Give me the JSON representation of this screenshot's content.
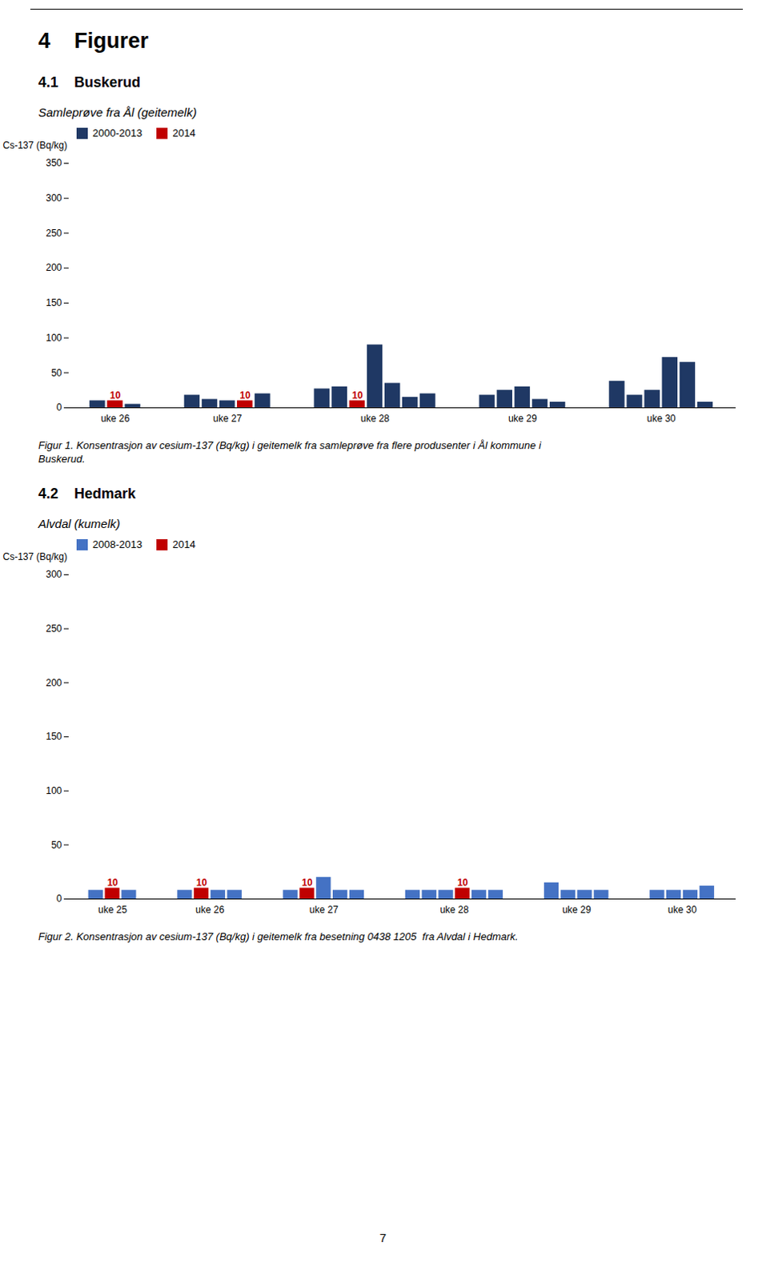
{
  "title": "4    Figurer",
  "footer": "7",
  "chart_data": [
    {
      "type": "bar",
      "section": "4.1    Buskerud",
      "title": "Samleprøve fra Ål (geitemelk)",
      "ylabel": "Cs-137 (Bq/kg)",
      "categories": [
        "uke 26",
        "uke 27",
        "uke 28",
        "uke 29",
        "uke 30"
      ],
      "series": [
        {
          "name": "2000-2013",
          "color": "#1F3864",
          "values": [
            [
              10,
              null,
              5
            ],
            [
              18,
              12,
              10,
              null,
              20
            ],
            [
              27,
              30,
              null,
              90,
              35,
              15,
              20
            ],
            [
              18,
              25,
              30,
              12,
              8
            ],
            [
              38,
              18,
              25,
              72,
              65,
              8
            ]
          ]
        },
        {
          "name": "2014",
          "color": "#C00000",
          "data_labels": true,
          "values": [
            [
              null,
              10,
              null
            ],
            [
              null,
              null,
              null,
              10,
              null
            ],
            [
              null,
              null,
              10,
              null,
              null,
              null,
              null
            ],
            [
              null,
              null,
              null,
              null,
              null
            ],
            [
              null,
              null,
              null,
              null,
              null,
              null
            ]
          ]
        }
      ],
      "ylim": [
        0,
        350
      ],
      "yticks": [
        0,
        50,
        100,
        150,
        200,
        250,
        300,
        350
      ],
      "grid": false,
      "legend": "upper left",
      "caption": [
        "Figur 1. Konsentrasjon av cesium-137 (Bq/kg) i geitemelk fra samleprøve fra flere produsenter i Ål kommune i",
        "Buskerud."
      ]
    },
    {
      "type": "bar",
      "section": "4.2    Hedmark",
      "title": "Alvdal (kumelk)",
      "ylabel": "Cs-137 (Bq/kg)",
      "categories": [
        "uke 25",
        "uke 26",
        "uke 27",
        "uke 28",
        "uke 29",
        "uke 30"
      ],
      "series": [
        {
          "name": "2008-2013",
          "color": "#4472C4",
          "values": [
            [
              8,
              null,
              8
            ],
            [
              8,
              null,
              8,
              8
            ],
            [
              8,
              null,
              20,
              8,
              8
            ],
            [
              8,
              8,
              8,
              null,
              8,
              8
            ],
            [
              15,
              8,
              8,
              8
            ],
            [
              8,
              8,
              8,
              12
            ]
          ]
        },
        {
          "name": "2014",
          "color": "#C00000",
          "data_labels": true,
          "values": [
            [
              null,
              10,
              null
            ],
            [
              null,
              10,
              null,
              null
            ],
            [
              null,
              10,
              null,
              null,
              null
            ],
            [
              null,
              null,
              null,
              10,
              null,
              null
            ],
            [
              null,
              null,
              null,
              null
            ],
            [
              null,
              null,
              null,
              null
            ]
          ]
        }
      ],
      "ylim": [
        0,
        300
      ],
      "yticks": [
        0,
        50,
        100,
        150,
        200,
        250,
        300
      ],
      "grid": false,
      "legend": "upper left",
      "caption": [
        "Figur 2. Konsentrasjon av cesium-137 (Bq/kg) i geitemelk fra besetning 0438 1205  fra Alvdal i Hedmark."
      ]
    }
  ]
}
